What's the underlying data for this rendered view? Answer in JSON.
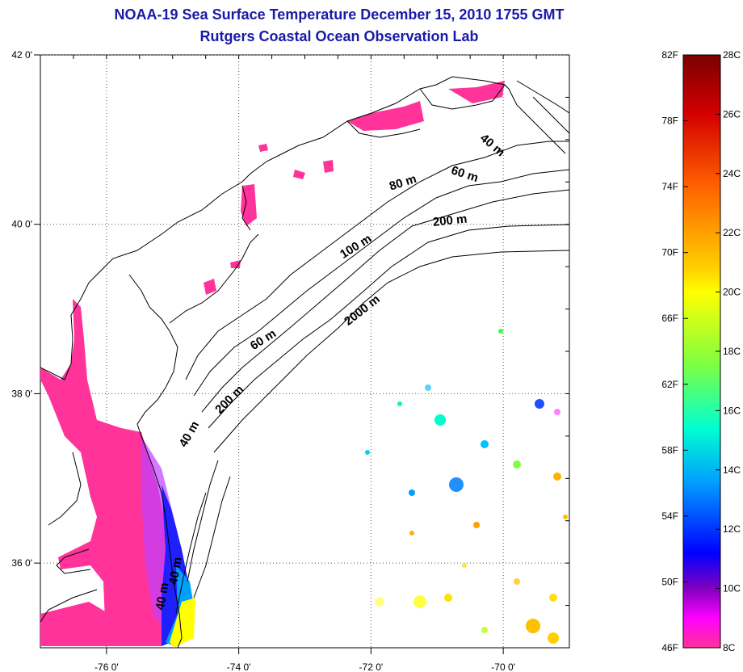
{
  "title": "NOAA-19 Sea Surface Temperature December 15, 2010 1755 GMT",
  "subtitle": "Rutgers Coastal Ocean Observation Lab",
  "map": {
    "lon_ticks": [
      {
        "value": -76,
        "label": "-76 0'"
      },
      {
        "value": -74,
        "label": "-74 0'"
      },
      {
        "value": -72,
        "label": "-72 0'"
      },
      {
        "value": -70,
        "label": "-70 0'"
      }
    ],
    "lat_ticks": [
      {
        "value": 42,
        "label": "42 0'"
      },
      {
        "value": 40,
        "label": "40 0'"
      },
      {
        "value": 38,
        "label": "38 0'"
      },
      {
        "value": 36,
        "label": "36 0'"
      }
    ],
    "isobath_labels": [
      {
        "text": "40 m",
        "lon": -70.2,
        "lat": 40.9,
        "rotate": 40
      },
      {
        "text": "60 m",
        "lon": -70.6,
        "lat": 40.55,
        "rotate": 18
      },
      {
        "text": "80 m",
        "lon": -71.5,
        "lat": 40.45,
        "rotate": -18
      },
      {
        "text": "200 m",
        "lon": -70.8,
        "lat": 40.0,
        "rotate": -6
      },
      {
        "text": "100 m",
        "lon": -72.2,
        "lat": 39.7,
        "rotate": -32
      },
      {
        "text": "2000 m",
        "lon": -72.1,
        "lat": 38.95,
        "rotate": -38
      },
      {
        "text": "60 m",
        "lon": -73.6,
        "lat": 38.6,
        "rotate": -32
      },
      {
        "text": "200 m",
        "lon": -74.1,
        "lat": 37.9,
        "rotate": -45
      },
      {
        "text": "40 m",
        "lon": -74.7,
        "lat": 37.5,
        "rotate": -60
      },
      {
        "text": "40 m",
        "lon": -74.9,
        "lat": 35.9,
        "rotate": -80
      },
      {
        "text": "40 m",
        "lon": -75.1,
        "lat": 35.6,
        "rotate": -80
      }
    ]
  },
  "colorbar": {
    "fahrenheit_labels": [
      "82F",
      "78F",
      "74F",
      "70F",
      "66F",
      "62F",
      "58F",
      "54F",
      "50F",
      "46F"
    ],
    "celsius_labels": [
      "28C",
      "26C",
      "24C",
      "22C",
      "20C",
      "18C",
      "16C",
      "14C",
      "12C",
      "10C",
      "8C"
    ],
    "colors": [
      "#8b0000",
      "#ff0000",
      "#ff8000",
      "#ffff00",
      "#80ff00",
      "#00ff80",
      "#00ffff",
      "#0080ff",
      "#0000ff",
      "#8000ff",
      "#ff00ff",
      "#ff3399"
    ]
  }
}
